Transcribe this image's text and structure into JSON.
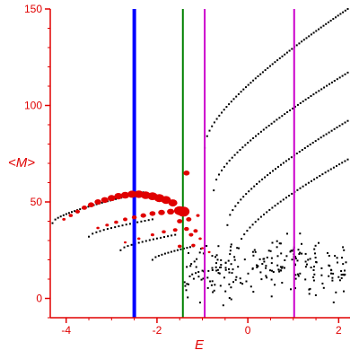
{
  "chart_data": {
    "type": "scatter",
    "title": "",
    "xlabel": "E",
    "ylabel": "<M>",
    "xlim": [
      -4.35,
      2.25
    ],
    "ylim": [
      -10,
      150
    ],
    "xticks": [
      -4,
      -2,
      0,
      2
    ],
    "yticks": [
      0,
      50,
      100,
      150
    ],
    "grid": false,
    "legend": "none",
    "colors": {
      "axis": "#e00000",
      "tick_label": "#e00000",
      "black_points": "#000000",
      "red_points": "#e00000",
      "vline_blue": "#0000ff",
      "vline_green": "#008000",
      "vline_magenta": "#cc00cc"
    },
    "vertical_lines": [
      {
        "x": -2.5,
        "color": "#0000ff",
        "width": 4
      },
      {
        "x": -1.43,
        "color": "#008000",
        "width": 2
      },
      {
        "x": -0.95,
        "color": "#cc00cc",
        "width": 2
      },
      {
        "x": 1.02,
        "color": "#cc00cc",
        "width": 2
      }
    ],
    "black_bands": [
      {
        "x0": -4.3,
        "x1": -2.3,
        "y0": 39,
        "y1": 55,
        "n": 34
      },
      {
        "x0": -0.95,
        "x1": 2.2,
        "y0": 78,
        "y1": 150,
        "n": 60
      },
      {
        "x0": -0.75,
        "x1": 2.2,
        "y0": 56,
        "y1": 117,
        "n": 52
      },
      {
        "x0": -0.45,
        "x1": 2.2,
        "y0": 38,
        "y1": 92,
        "n": 46
      },
      {
        "x0": -0.2,
        "x1": 2.2,
        "y0": 26,
        "y1": 72,
        "n": 40
      },
      {
        "x0": -3.5,
        "x1": -2.1,
        "y0": 32,
        "y1": 41,
        "n": 18
      },
      {
        "x0": -2.8,
        "x1": -1.6,
        "y0": 25,
        "y1": 33,
        "n": 16
      },
      {
        "x0": -2.1,
        "x1": -1.2,
        "y0": 20,
        "y1": 27,
        "n": 14
      }
    ],
    "black_cluster": {
      "x0": -1.4,
      "x1": 2.2,
      "y0": -8,
      "y1": 35,
      "n": 230
    },
    "red_points": [
      {
        "x": -4.05,
        "y": 41,
        "s": 1.5
      },
      {
        "x": -3.9,
        "y": 43,
        "s": 1.8
      },
      {
        "x": -3.75,
        "y": 45,
        "s": 2.1
      },
      {
        "x": -3.6,
        "y": 47,
        "s": 2.4
      },
      {
        "x": -3.45,
        "y": 48.5,
        "s": 2.8
      },
      {
        "x": -3.3,
        "y": 50,
        "s": 3.0
      },
      {
        "x": -3.15,
        "y": 51,
        "s": 3.2
      },
      {
        "x": -3.0,
        "y": 52,
        "s": 3.4
      },
      {
        "x": -2.85,
        "y": 53,
        "s": 3.6
      },
      {
        "x": -2.7,
        "y": 53.5,
        "s": 3.8
      },
      {
        "x": -2.55,
        "y": 54,
        "s": 4.0
      },
      {
        "x": -2.4,
        "y": 54,
        "s": 4.2
      },
      {
        "x": -2.25,
        "y": 53.5,
        "s": 4.3
      },
      {
        "x": -2.1,
        "y": 53,
        "s": 4.4
      },
      {
        "x": -1.95,
        "y": 52,
        "s": 4.5
      },
      {
        "x": -1.8,
        "y": 51,
        "s": 4.4
      },
      {
        "x": -1.65,
        "y": 49.5,
        "s": 4.0
      },
      {
        "x": -3.3,
        "y": 36.5,
        "s": 1.4
      },
      {
        "x": -3.1,
        "y": 38,
        "s": 1.6
      },
      {
        "x": -2.9,
        "y": 39.5,
        "s": 1.8
      },
      {
        "x": -2.7,
        "y": 41,
        "s": 2.0
      },
      {
        "x": -2.5,
        "y": 42,
        "s": 2.2
      },
      {
        "x": -2.3,
        "y": 43,
        "s": 2.5
      },
      {
        "x": -2.1,
        "y": 44,
        "s": 2.7
      },
      {
        "x": -1.9,
        "y": 44.5,
        "s": 3.0
      },
      {
        "x": -1.7,
        "y": 45,
        "s": 3.2
      },
      {
        "x": -1.5,
        "y": 45.5,
        "s": 5.0
      },
      {
        "x": -1.42,
        "y": 45,
        "s": 5.5
      },
      {
        "x": -2.7,
        "y": 29,
        "s": 1.2
      },
      {
        "x": -2.4,
        "y": 31,
        "s": 1.4
      },
      {
        "x": -2.1,
        "y": 33,
        "s": 1.6
      },
      {
        "x": -1.85,
        "y": 34.5,
        "s": 1.8
      },
      {
        "x": -1.6,
        "y": 35.5,
        "s": 2.0
      },
      {
        "x": -1.35,
        "y": 36,
        "s": 2.2
      },
      {
        "x": -1.15,
        "y": 35,
        "s": 2.0
      },
      {
        "x": -1.35,
        "y": 65,
        "s": 2.8
      },
      {
        "x": -1.3,
        "y": 41,
        "s": 2.4
      },
      {
        "x": -1.25,
        "y": 33,
        "s": 2.0
      },
      {
        "x": -1.5,
        "y": 27,
        "s": 1.8
      },
      {
        "x": -1.2,
        "y": 27.5,
        "s": 1.8
      },
      {
        "x": -1.05,
        "y": 31,
        "s": 1.4
      },
      {
        "x": -1.1,
        "y": 43,
        "s": 1.6
      },
      {
        "x": -1.5,
        "y": 40,
        "s": 2.4
      },
      {
        "x": -1.0,
        "y": 26,
        "s": 1.2
      },
      {
        "x": -0.85,
        "y": 24,
        "s": 1.2
      }
    ]
  }
}
